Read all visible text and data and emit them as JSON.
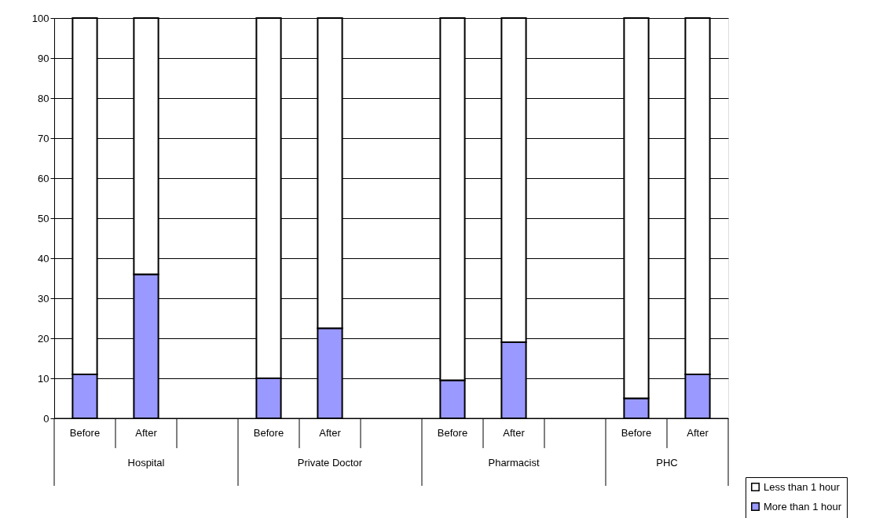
{
  "chart_data": {
    "type": "bar",
    "stacked": true,
    "categories": [
      "Before",
      "After",
      null,
      "Before",
      "After",
      null,
      "Before",
      "After",
      null,
      "Before",
      "After"
    ],
    "series": [
      {
        "name": "More than 1 hour",
        "color": "#9999ff",
        "values": [
          11,
          36,
          null,
          10,
          22.5,
          null,
          9.5,
          19,
          null,
          5,
          11
        ]
      },
      {
        "name": "Less than 1 hour",
        "color": "#ffffff",
        "values": [
          89,
          64,
          null,
          90,
          77.5,
          null,
          90.5,
          81,
          null,
          95,
          89
        ]
      }
    ],
    "annotations": [
      "Hospital",
      "Private Doctor",
      "Pharmacist",
      "PHC"
    ],
    "ylim": [
      0,
      100
    ],
    "yticks": [
      0,
      10,
      20,
      30,
      40,
      50,
      60,
      70,
      80,
      90,
      100
    ],
    "grid": "y",
    "legend": "bottom right"
  }
}
